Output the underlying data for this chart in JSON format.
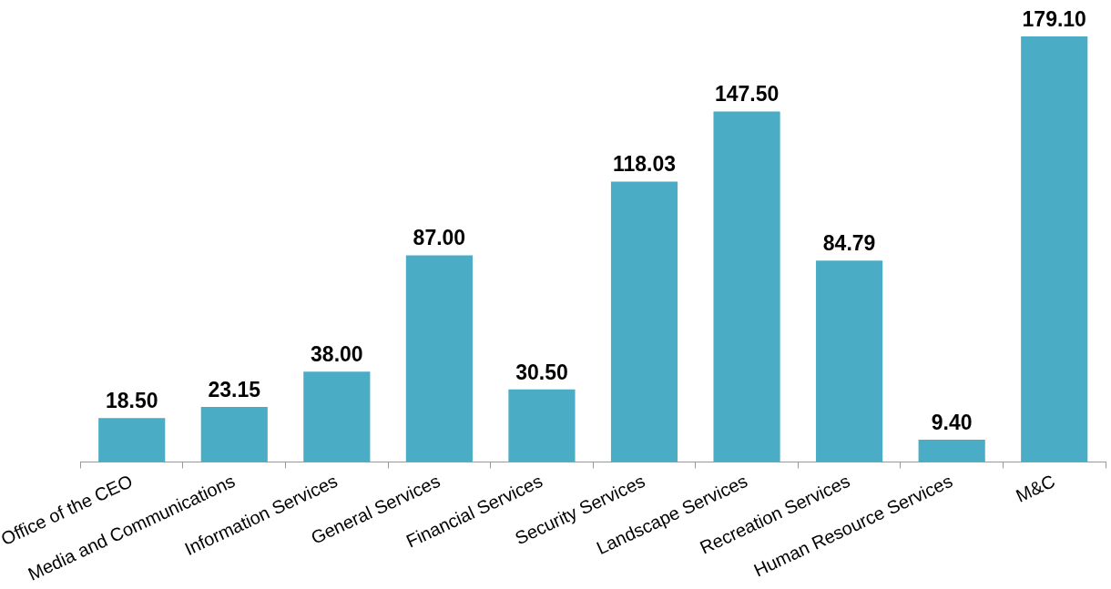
{
  "chart_data": {
    "type": "bar",
    "categories": [
      "Office of the CEO",
      "Media and Communications",
      "Information Services",
      "General Services",
      "Financial Services",
      "Security Services",
      "Landscape Services",
      "Recreation Services",
      "Human Resource Services",
      "M&C"
    ],
    "values": [
      18.5,
      23.15,
      38.0,
      87.0,
      30.5,
      118.03,
      147.5,
      84.79,
      9.4,
      179.1
    ],
    "value_labels": [
      "18.50",
      "23.15",
      "38.00",
      "87.00",
      "30.50",
      "118.03",
      "147.50",
      "84.79",
      "9.40",
      "179.10"
    ],
    "color": "#4bacc6",
    "legend": false,
    "grid": false,
    "tick_labels": "x"
  }
}
